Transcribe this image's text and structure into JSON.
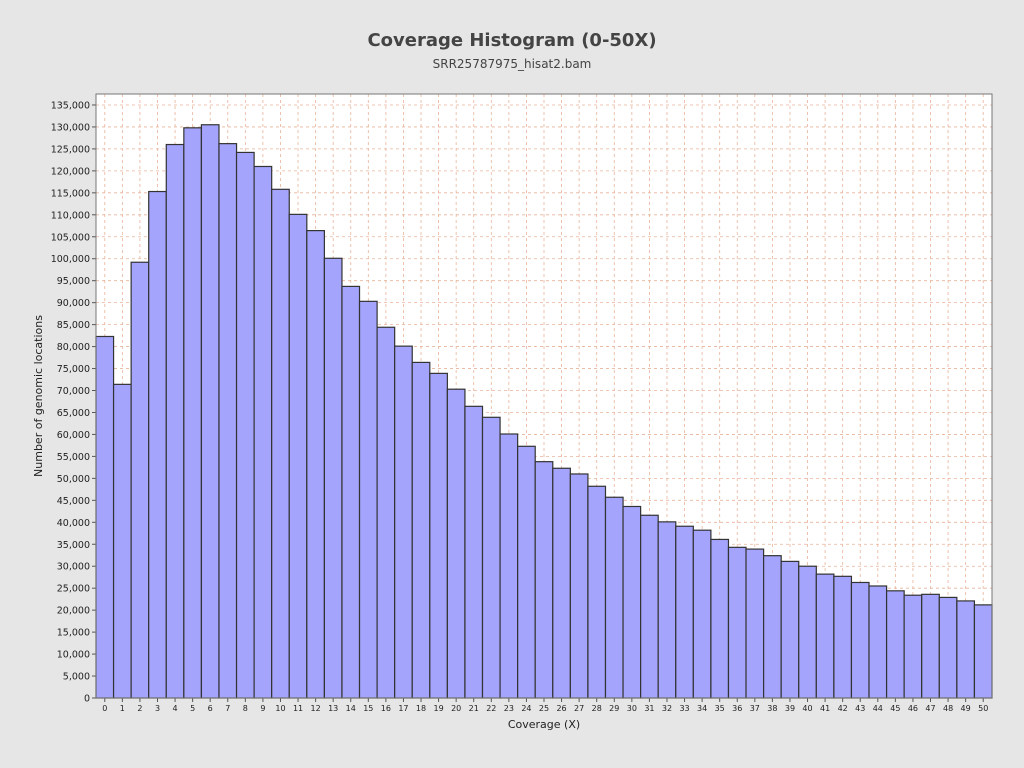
{
  "title": "Coverage Histogram (0-50X)",
  "subtitle": "SRR25787975_hisat2.bam",
  "colors": {
    "bar_fill": "#a4a4fc",
    "bar_stroke": "#333333",
    "grid": "#e8b49a",
    "plot_bg": "#ffffff"
  },
  "chart_data": {
    "type": "bar",
    "title": "Coverage Histogram (0-50X)",
    "subtitle": "SRR25787975_hisat2.bam",
    "xlabel": "Coverage (X)",
    "ylabel": "Number of genomic locations",
    "ylim": [
      0,
      137500
    ],
    "ytick_step": 5000,
    "grid": true,
    "categories": [
      "0",
      "1",
      "2",
      "3",
      "4",
      "5",
      "6",
      "7",
      "8",
      "9",
      "10",
      "11",
      "12",
      "13",
      "14",
      "15",
      "16",
      "17",
      "18",
      "19",
      "20",
      "21",
      "22",
      "23",
      "24",
      "25",
      "26",
      "27",
      "28",
      "29",
      "30",
      "31",
      "32",
      "33",
      "34",
      "35",
      "36",
      "37",
      "38",
      "39",
      "40",
      "41",
      "42",
      "43",
      "44",
      "45",
      "46",
      "47",
      "48",
      "49",
      "50"
    ],
    "values": [
      82300,
      71400,
      99200,
      115300,
      126000,
      129800,
      130500,
      126200,
      124200,
      121000,
      115800,
      110100,
      106400,
      100100,
      93700,
      90300,
      84400,
      80100,
      76400,
      73900,
      70300,
      66400,
      63900,
      60100,
      57300,
      53800,
      52300,
      51000,
      48200,
      45700,
      43600,
      41600,
      40100,
      39100,
      38200,
      36100,
      34300,
      33900,
      32400,
      31100,
      30000,
      28200,
      27700,
      26300,
      25500,
      24400,
      23400,
      23600,
      22900,
      22100,
      21200
    ]
  }
}
